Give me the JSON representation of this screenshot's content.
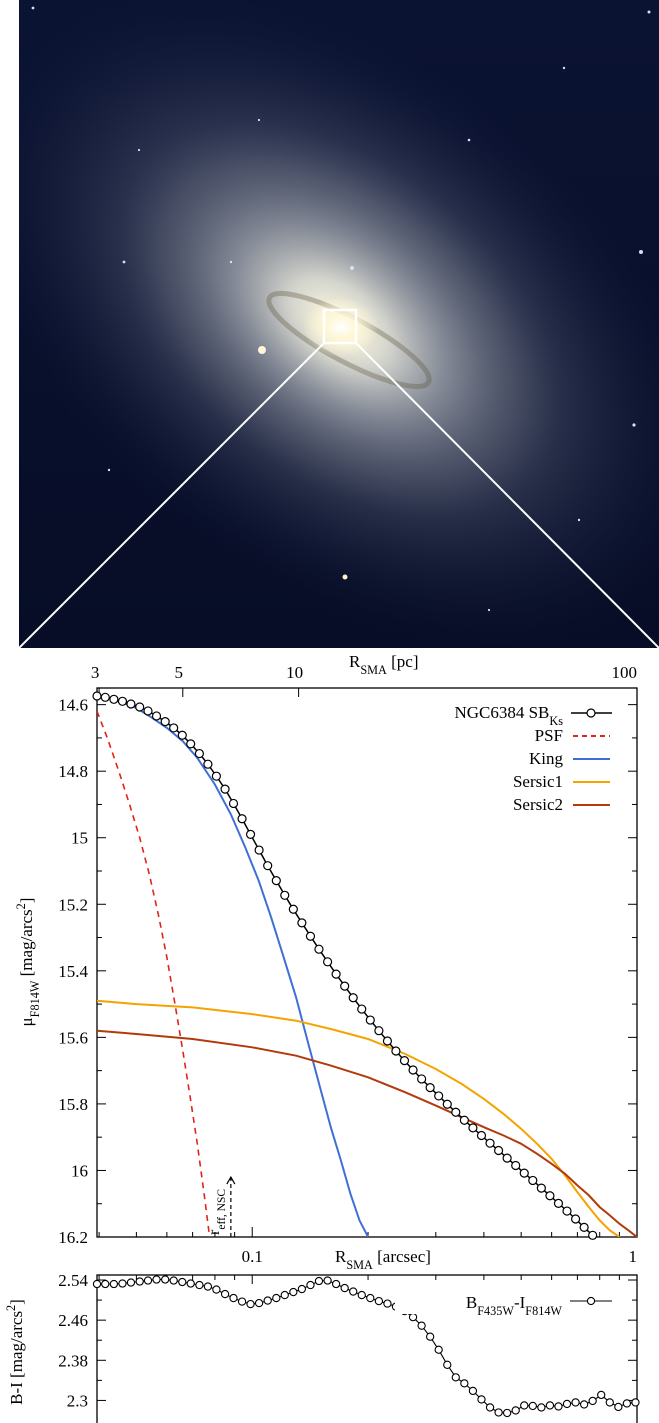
{
  "colors": {
    "sky_top": "#0b1333",
    "sky_bottom": "#070d26",
    "bulge_core": "#fffbe8",
    "bulge_halo": "#cfd4d4",
    "zoom_box": "#ffffff",
    "sb_points": "#000000",
    "psf": "#e3231b",
    "king": "#3f6fd6",
    "sersic1": "#f5a300",
    "sersic2": "#b23a0b"
  },
  "chart_data": [
    {
      "type": "line",
      "xscale": "log",
      "xlim": [
        0.0395,
        1.0
      ],
      "ylim": [
        16.2,
        14.55
      ],
      "y_inverted": true,
      "top_axis": {
        "label_main": "R",
        "label_sub": "SMA",
        "label_unit": " [pc]",
        "tick_labels": [
          "3",
          "5",
          "10",
          "100"
        ],
        "tick_arcsec": [
          0.04,
          0.066,
          0.132,
          1.0
        ]
      },
      "xlabel_main": "R",
      "xlabel_sub": "SMA",
      "xlabel_unit": " [arcsec]",
      "x_ticks": [
        0.1,
        1
      ],
      "x_tick_labels": [
        "0.1",
        "1"
      ],
      "ylabel_main": "μ",
      "ylabel_sub": "F814W",
      "ylabel_unit": " [mag/arcs",
      "ylabel_sup": "2",
      "ylabel_close": "]",
      "y_ticks": [
        14.6,
        14.8,
        15.0,
        15.2,
        15.4,
        15.6,
        15.8,
        16.0,
        16.2
      ],
      "y_tick_labels": [
        "14.6",
        "14.8",
        "15",
        "15.2",
        "15.4",
        "15.6",
        "15.8",
        "16",
        "16.2"
      ],
      "legend_position": "top-right",
      "legend_labels": {
        "sb_main": "NGC6384 SB",
        "sb_sub": "Ks",
        "psf": "PSF",
        "king": "King",
        "sersic1": "Sersic1",
        "sersic2": "Sersic2"
      },
      "annotation": {
        "main": "r",
        "sub": "eff, NSC",
        "x_arcsec": 0.088,
        "y_range": [
          16.2,
          16.02
        ]
      },
      "series": [
        {
          "name": "NGC6384 SB Ks",
          "x": [
            0.0395,
            0.0415,
            0.0437,
            0.046,
            0.0484,
            0.051,
            0.0536,
            0.0564,
            0.0594,
            0.0625,
            0.0658,
            0.0692,
            0.0729,
            0.0767,
            0.0807,
            0.085,
            0.0894,
            0.0941,
            0.099,
            0.1042,
            0.1097,
            0.1155,
            0.1215,
            0.1279,
            0.1346,
            0.1417,
            0.1491,
            0.157,
            0.1652,
            0.1739,
            0.183,
            0.1926,
            0.2027,
            0.2134,
            0.2246,
            0.2363,
            0.2487,
            0.2618,
            0.2756,
            0.29,
            0.3052,
            0.3213,
            0.3381,
            0.3559,
            0.3746,
            0.3943,
            0.415,
            0.4368,
            0.4597,
            0.4839,
            0.5093,
            0.536,
            0.5642,
            0.5939,
            0.625,
            0.6578,
            0.6924,
            0.7288,
            0.767,
            0.8073,
            0.8497,
            0.8944,
            0.9413,
            0.9908
          ],
          "y": [
            14.574,
            14.578,
            14.584,
            14.59,
            14.598,
            14.607,
            14.619,
            14.634,
            14.651,
            14.67,
            14.692,
            14.718,
            14.747,
            14.779,
            14.815,
            14.854,
            14.897,
            14.943,
            14.99,
            15.037,
            15.084,
            15.129,
            15.173,
            15.215,
            15.256,
            15.296,
            15.335,
            15.373,
            15.41,
            15.446,
            15.481,
            15.515,
            15.548,
            15.58,
            15.611,
            15.641,
            15.67,
            15.698,
            15.725,
            15.751,
            15.776,
            15.801,
            15.825,
            15.849,
            15.872,
            15.895,
            15.918,
            15.94,
            15.963,
            15.985,
            16.008,
            16.03,
            16.053,
            16.076,
            16.099,
            16.122,
            16.146,
            16.171,
            16.195,
            16.22,
            16.245,
            16.27,
            16.295,
            16.32
          ]
        },
        {
          "name": "PSF",
          "x": [
            0.0395,
            0.042,
            0.045,
            0.048,
            0.051,
            0.054,
            0.057,
            0.06,
            0.063,
            0.066,
            0.069,
            0.072,
            0.075,
            0.0775
          ],
          "y": [
            14.62,
            14.7,
            14.8,
            14.9,
            15.0,
            15.11,
            15.23,
            15.36,
            15.5,
            15.64,
            15.78,
            15.92,
            16.07,
            16.2
          ]
        },
        {
          "name": "King",
          "x": [
            0.0395,
            0.045,
            0.05,
            0.055,
            0.06,
            0.066,
            0.072,
            0.08,
            0.088,
            0.096,
            0.104,
            0.112,
            0.12,
            0.13,
            0.14,
            0.15,
            0.16,
            0.17,
            0.18,
            0.19,
            0.2
          ],
          "y": [
            14.57,
            14.59,
            14.61,
            14.64,
            14.67,
            14.71,
            14.76,
            14.84,
            14.93,
            15.03,
            15.13,
            15.24,
            15.35,
            15.48,
            15.62,
            15.75,
            15.87,
            15.97,
            16.07,
            16.15,
            16.2
          ]
        },
        {
          "name": "Sersic1",
          "x": [
            0.0395,
            0.05,
            0.07,
            0.1,
            0.13,
            0.16,
            0.2,
            0.25,
            0.3,
            0.35,
            0.4,
            0.45,
            0.5,
            0.55,
            0.6,
            0.65,
            0.7,
            0.75,
            0.8,
            0.85,
            0.9
          ],
          "y": [
            15.49,
            15.5,
            15.51,
            15.53,
            15.55,
            15.575,
            15.605,
            15.65,
            15.695,
            15.74,
            15.785,
            15.83,
            15.875,
            15.92,
            15.965,
            16.015,
            16.065,
            16.11,
            16.15,
            16.18,
            16.2
          ]
        },
        {
          "name": "Sersic2",
          "x": [
            0.0395,
            0.05,
            0.07,
            0.1,
            0.13,
            0.16,
            0.2,
            0.25,
            0.3,
            0.35,
            0.4,
            0.45,
            0.5,
            0.55,
            0.6,
            0.65,
            0.7,
            0.75,
            0.8,
            0.85,
            0.9,
            0.95,
            1.0
          ],
          "y": [
            15.58,
            15.59,
            15.605,
            15.63,
            15.655,
            15.685,
            15.72,
            15.765,
            15.805,
            15.84,
            15.87,
            15.895,
            15.92,
            15.95,
            15.98,
            16.01,
            16.045,
            16.075,
            16.11,
            16.135,
            16.16,
            16.18,
            16.2
          ]
        }
      ]
    },
    {
      "type": "line",
      "xscale": "log",
      "xlim": [
        0.0395,
        1.0
      ],
      "ylim": [
        2.255,
        2.55
      ],
      "ylabel": "B-I [mag/arcs",
      "ylabel_sup": "2",
      "ylabel_close": "]",
      "y_ticks": [
        2.3,
        2.38,
        2.46,
        2.54
      ],
      "y_tick_labels": [
        "2.3",
        "2.38",
        "2.46",
        "2.54"
      ],
      "legend_position": "top-right",
      "legend_labels": {
        "b_main": "B",
        "b_sub": "F435W",
        "dash": "-",
        "i_main": "I",
        "i_sub": "F814W"
      },
      "series": [
        {
          "name": "B F435W - I F814W",
          "x": [
            0.0395,
            0.0415,
            0.0437,
            0.046,
            0.0484,
            0.051,
            0.0536,
            0.0564,
            0.0594,
            0.0625,
            0.0658,
            0.0692,
            0.0729,
            0.0767,
            0.0807,
            0.085,
            0.0894,
            0.0941,
            0.099,
            0.1042,
            0.1097,
            0.1155,
            0.1215,
            0.1279,
            0.1346,
            0.1417,
            0.1491,
            0.157,
            0.1652,
            0.1739,
            0.183,
            0.1926,
            0.2027,
            0.2134,
            0.2246,
            0.2363,
            0.2487,
            0.2618,
            0.2756,
            0.29,
            0.3052,
            0.3213,
            0.3381,
            0.3559,
            0.3746,
            0.3943,
            0.415,
            0.4368,
            0.4597,
            0.4839,
            0.5093,
            0.536,
            0.5642,
            0.5939,
            0.625,
            0.6578,
            0.6924,
            0.7288,
            0.767,
            0.8073,
            0.8497,
            0.8944,
            0.9413,
            0.9908
          ],
          "y": [
            2.532,
            2.532,
            2.532,
            2.533,
            2.535,
            2.537,
            2.539,
            2.541,
            2.541,
            2.539,
            2.536,
            2.533,
            2.53,
            2.527,
            2.521,
            2.512,
            2.504,
            2.497,
            2.492,
            2.494,
            2.499,
            2.504,
            2.51,
            2.516,
            2.522,
            2.53,
            2.538,
            2.539,
            2.532,
            2.524,
            2.517,
            2.51,
            2.504,
            2.498,
            2.493,
            2.487,
            2.478,
            2.466,
            2.449,
            2.427,
            2.401,
            2.371,
            2.346,
            2.334,
            2.319,
            2.302,
            2.286,
            2.276,
            2.275,
            2.28,
            2.29,
            2.289,
            2.286,
            2.29,
            2.288,
            2.293,
            2.296,
            2.292,
            2.299,
            2.311,
            2.296,
            2.287,
            2.294,
            2.296
          ]
        }
      ]
    }
  ]
}
